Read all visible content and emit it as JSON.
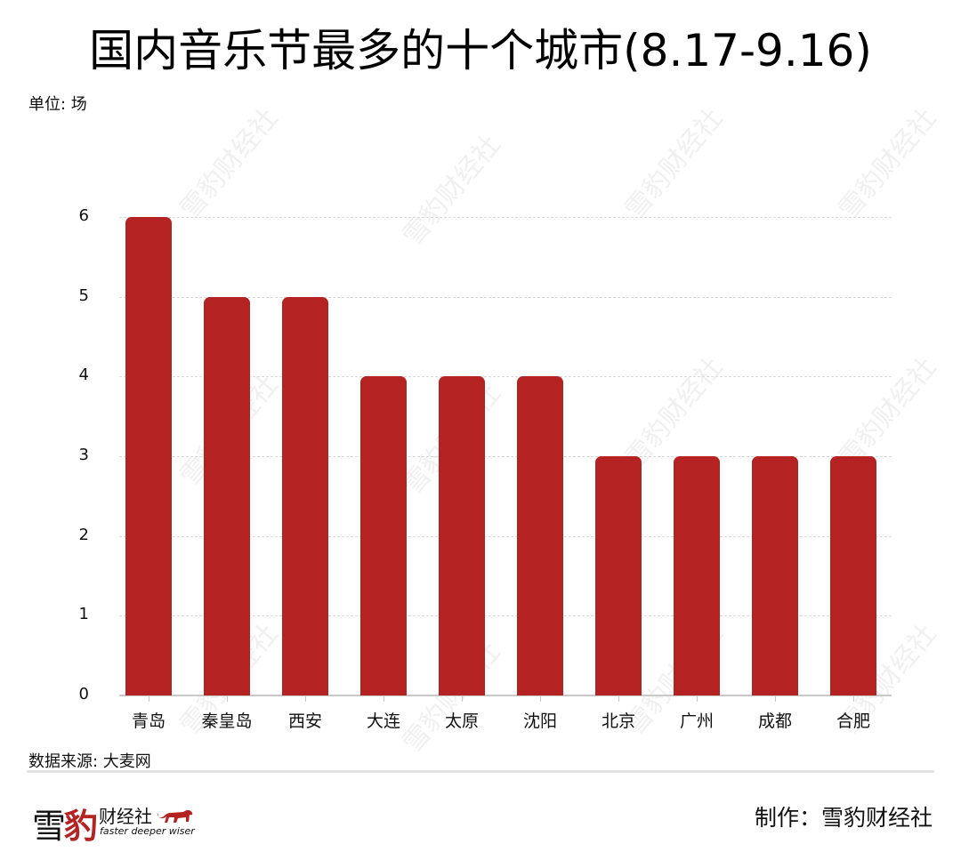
{
  "header": {
    "title": "国内音乐节最多的十个城市(8.17-9.16)",
    "unit": "单位: 场"
  },
  "footer": {
    "source": "数据来源: 大麦网",
    "credit": "制作：雪豹财经社",
    "logo": {
      "char1": "雪",
      "char2": "豹",
      "name": "财经社",
      "slogan": "faster deeper wiser",
      "icon": "leopard-icon"
    },
    "watermark": "雪豹财经社"
  },
  "colors": {
    "bar": "#b52222",
    "grid": "#dadada",
    "axis": "#c9c9c9",
    "text": "#111111"
  },
  "chart_data": {
    "type": "bar",
    "title": "国内音乐节最多的十个城市(8.17-9.16)",
    "xlabel": "",
    "ylabel": "单位: 场",
    "categories": [
      "青岛",
      "秦皇岛",
      "西安",
      "大连",
      "太原",
      "沈阳",
      "北京",
      "广州",
      "成都",
      "合肥"
    ],
    "values": [
      6,
      5,
      5,
      4,
      4,
      4,
      3,
      3,
      3,
      3
    ],
    "yticks": [
      "0",
      "1",
      "2",
      "3",
      "4",
      "5",
      "6"
    ],
    "ylim": [
      0,
      6
    ],
    "grid": true,
    "legend": null,
    "source": "数据来源: 大麦网"
  }
}
